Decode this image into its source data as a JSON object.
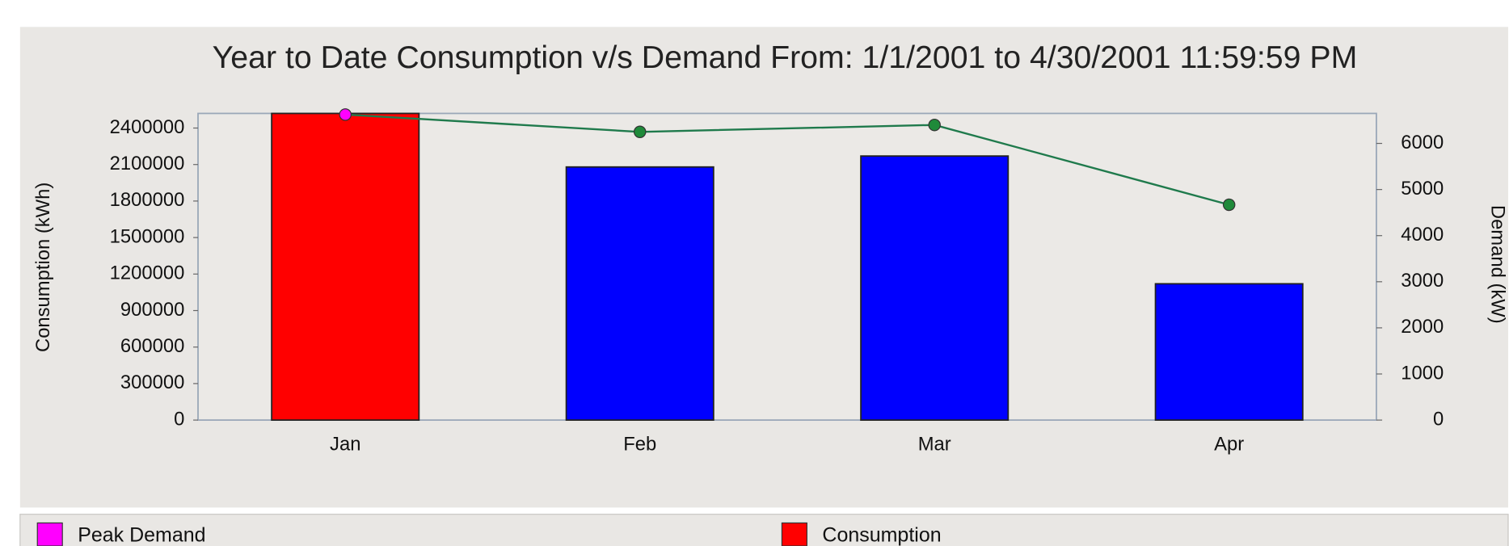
{
  "chart_data": {
    "type": "bar-line",
    "title": "Year to Date Consumption v/s Demand From: 1/1/2001 to 4/30/2001 11:59:59 PM",
    "y_label": "Consumption (kWh)",
    "y2_label": "Demand (kW)",
    "categories": [
      "Jan",
      "Feb",
      "Mar",
      "Apr"
    ],
    "series": [
      {
        "type": "bar",
        "colors": [
          "#ff0000",
          "#0000ff",
          "#0000ff",
          "#0000ff"
        ],
        "values": [
          2520000,
          2080000,
          2170000,
          1120000
        ]
      },
      {
        "type": "line",
        "axis": "y2",
        "color": "#1f7a4c",
        "point_colors": [
          "#ff00ff",
          "#1f8a3a",
          "#1f8a3a",
          "#1f8a3a"
        ],
        "values": [
          6625,
          6250,
          6400,
          4670
        ]
      }
    ],
    "ylim": [
      0,
      2520000
    ],
    "yticks": [
      0,
      300000,
      600000,
      900000,
      1200000,
      1500000,
      1800000,
      2100000,
      2400000
    ],
    "y2lim": [
      0,
      6650
    ],
    "y2ticks": [
      0,
      1000,
      2000,
      3000,
      4000,
      5000,
      6000
    ],
    "legend": [
      {
        "label": "Peak Demand",
        "color": "#ff00ff"
      },
      {
        "label": "Consumption",
        "color": "#ff0000"
      }
    ]
  }
}
